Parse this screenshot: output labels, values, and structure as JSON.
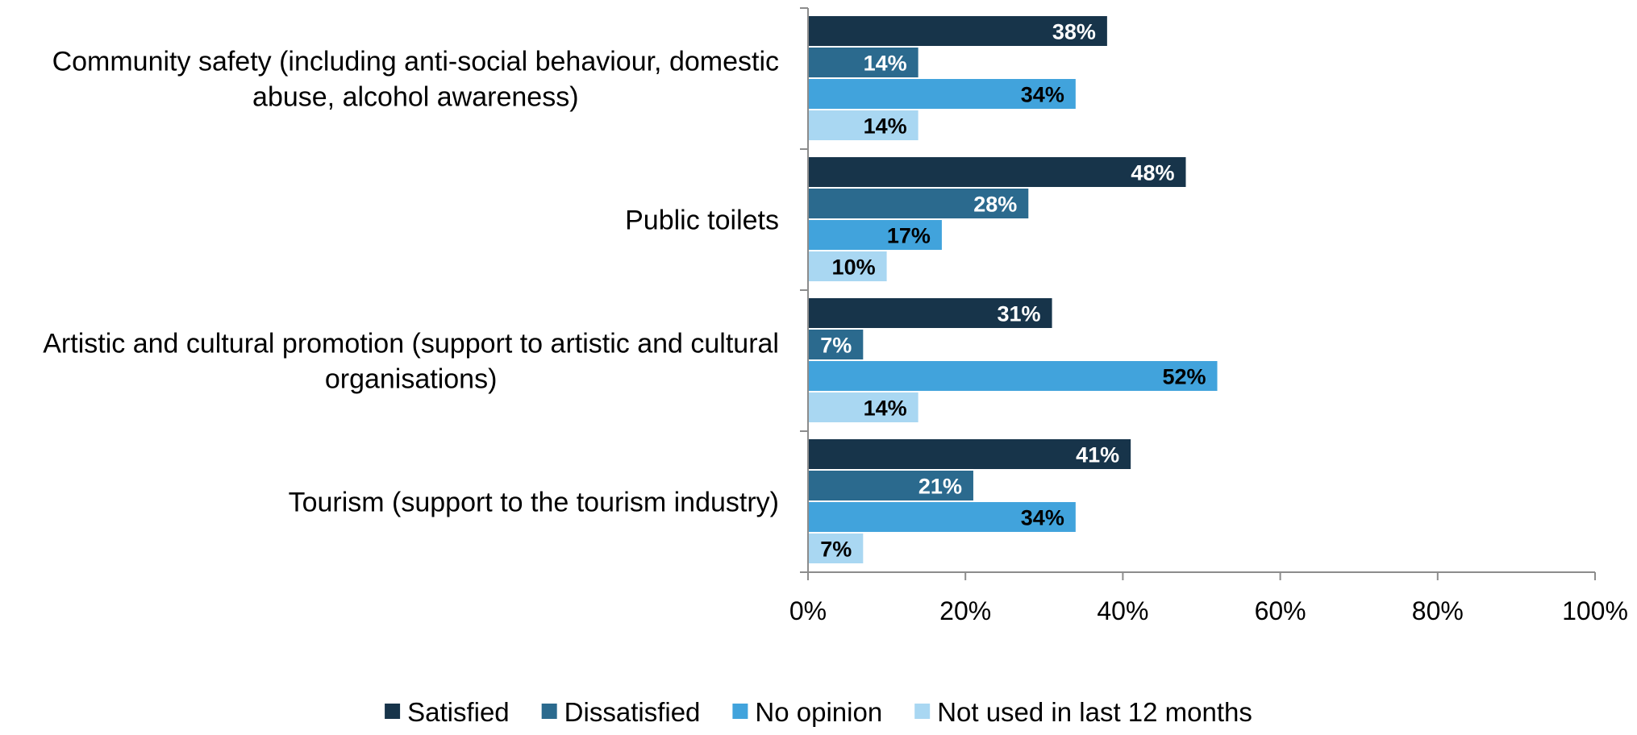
{
  "chart_data": {
    "type": "bar",
    "orientation": "horizontal",
    "title": "",
    "xlabel": "",
    "ylabel": "",
    "categories": [
      [
        "Community safety (including anti-social behaviour, domestic",
        "abuse, alcohol awareness)"
      ],
      [
        "Public toilets"
      ],
      [
        "Artistic and cultural promotion (support to artistic and cultural",
        "organisations)"
      ],
      [
        "Tourism (support to the tourism industry)"
      ]
    ],
    "series": [
      {
        "name": "Satisfied",
        "color": "#17344a",
        "label_color": "#ffffff",
        "values": [
          38,
          48,
          31,
          41
        ],
        "labels": [
          "38%",
          "48%",
          "31%",
          "41%"
        ]
      },
      {
        "name": "Dissatisfied",
        "color": "#2b6a8e",
        "label_color": "#ffffff",
        "values": [
          14,
          28,
          7,
          21
        ],
        "labels": [
          "14%",
          "28%",
          "7%",
          "21%"
        ]
      },
      {
        "name": "No opinion",
        "color": "#41a3dc",
        "label_color": "#000000",
        "values": [
          34,
          17,
          52,
          34
        ],
        "labels": [
          "34%",
          "17%",
          "52%",
          "34%"
        ]
      },
      {
        "name": "Not used in last 12 months",
        "color": "#a9d7f2",
        "label_color": "#000000",
        "values": [
          14,
          10,
          14,
          7
        ],
        "labels": [
          "14%",
          "10%",
          "14%",
          "7%"
        ]
      }
    ],
    "xlim": [
      0,
      100
    ],
    "xticks": [
      0,
      20,
      40,
      60,
      80,
      100
    ],
    "xtick_labels": [
      "0%",
      "20%",
      "40%",
      "60%",
      "80%",
      "100%"
    ],
    "grid": false,
    "legend_position": "bottom"
  }
}
